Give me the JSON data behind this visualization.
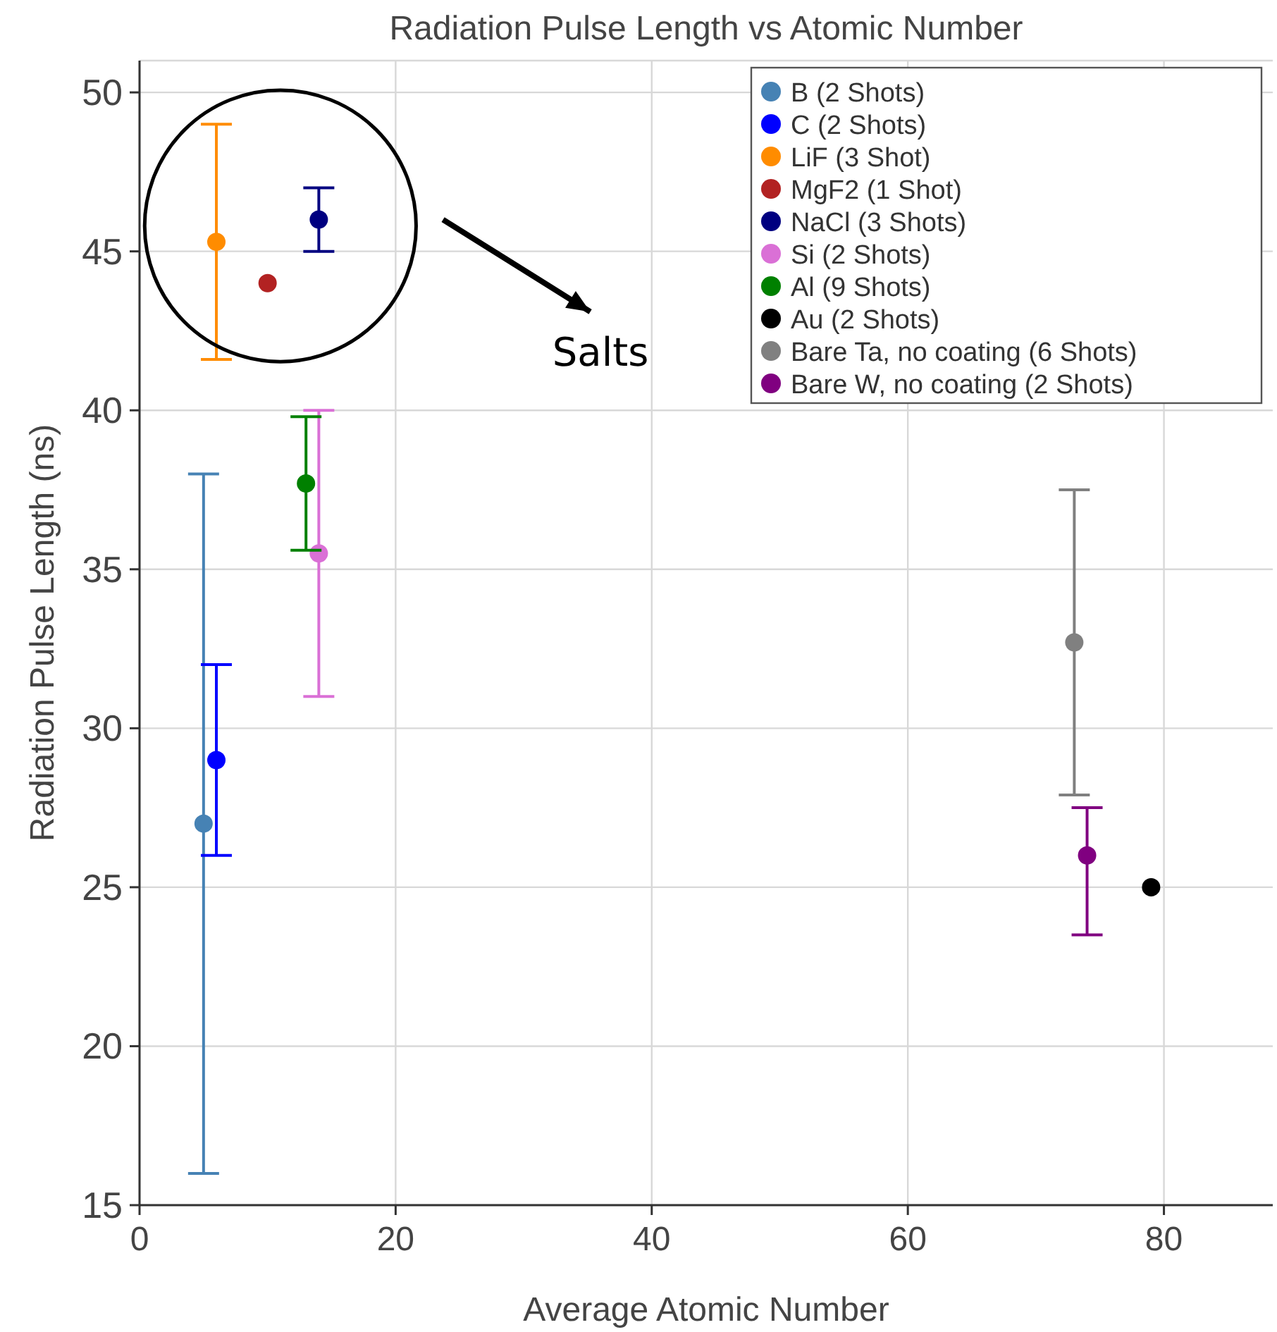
{
  "chart_data": {
    "type": "scatter",
    "title": "Radiation Pulse Length vs Atomic Number",
    "xlabel": "Average Atomic Number",
    "ylabel": "Radiation Pulse Length (ns)",
    "xlim": [
      0,
      88.5
    ],
    "xticks": [
      0,
      20,
      40,
      60,
      80
    ],
    "ylim": [
      15,
      51
    ],
    "yticks": [
      15,
      20,
      25,
      30,
      35,
      40,
      45,
      50
    ],
    "grid": true,
    "legend": "top right",
    "marker": "circle",
    "annotations": [
      "Salts"
    ],
    "series": [
      {
        "name": "B (2 Shots)",
        "color": "#4682b4",
        "x": [
          5
        ],
        "values": [
          27
        ],
        "errors": [
          [
            16,
            38
          ]
        ]
      },
      {
        "name": "C (2 Shots)",
        "color": "#0000ff",
        "x": [
          6
        ],
        "values": [
          29
        ],
        "errors": [
          [
            26,
            32
          ]
        ]
      },
      {
        "name": "LiF (3 Shot)",
        "color": "#ff8c00",
        "x": [
          6
        ],
        "values": [
          45.3
        ],
        "errors": [
          [
            41.6,
            49
          ]
        ]
      },
      {
        "name": "MgF2 (1 Shot)",
        "color": "#b22222",
        "x": [
          10
        ],
        "values": [
          44
        ]
      },
      {
        "name": "NaCl (3 Shots)",
        "color": "#000080",
        "x": [
          14
        ],
        "values": [
          46
        ],
        "errors": [
          [
            45,
            47
          ]
        ]
      },
      {
        "name": "Si (2 Shots)",
        "color": "#da70d6",
        "x": [
          14
        ],
        "values": [
          35.5
        ],
        "errors": [
          [
            31,
            40
          ]
        ]
      },
      {
        "name": "Al (9 Shots)",
        "color": "#008000",
        "x": [
          13
        ],
        "values": [
          37.7
        ],
        "errors": [
          [
            35.6,
            39.8
          ]
        ]
      },
      {
        "name": "Au (2 Shots)",
        "color": "#000000",
        "x": [
          79
        ],
        "values": [
          25
        ]
      },
      {
        "name": "Bare Ta, no coating (6 Shots)",
        "color": "#808080",
        "x": [
          73
        ],
        "values": [
          32.7
        ],
        "errors": [
          [
            27.9,
            37.5
          ]
        ]
      },
      {
        "name": "Bare W, no coating (2 Shots)",
        "color": "#800080",
        "x": [
          74
        ],
        "values": [
          26
        ],
        "errors": [
          [
            23.5,
            27.5
          ]
        ]
      }
    ]
  }
}
